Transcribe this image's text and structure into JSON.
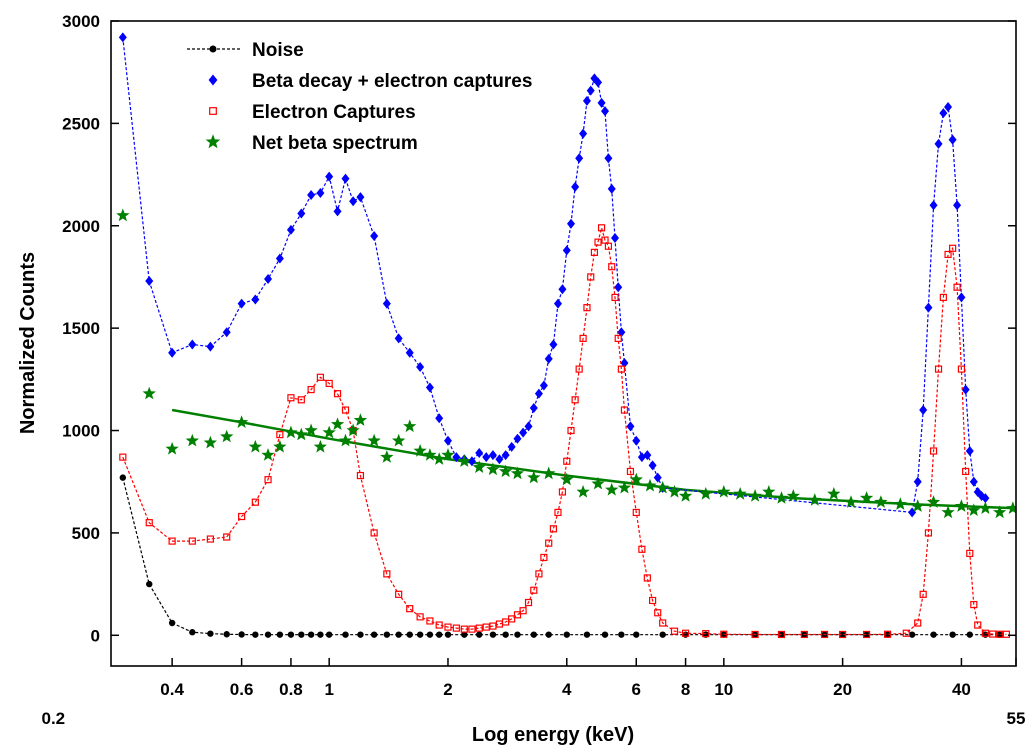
{
  "chart_data": {
    "type": "scatter",
    "xlabel": "Log energy (keV)",
    "ylabel": "Normalized Counts",
    "xscale": "log",
    "xlim": [
      0.28,
      55
    ],
    "ylim": [
      -150,
      3000
    ],
    "grid": false,
    "legend_position": "top-left",
    "x_ticks": [
      {
        "value": 0.2,
        "label": "0.2"
      },
      {
        "value": 0.4,
        "label": "0.4"
      },
      {
        "value": 0.6,
        "label": "0.6"
      },
      {
        "value": 0.8,
        "label": "0.8"
      },
      {
        "value": 1,
        "label": "1"
      },
      {
        "value": 2,
        "label": "2"
      },
      {
        "value": 4,
        "label": "4"
      },
      {
        "value": 6,
        "label": "6"
      },
      {
        "value": 8,
        "label": "8"
      },
      {
        "value": 10,
        "label": "10"
      },
      {
        "value": 20,
        "label": "20"
      },
      {
        "value": 40,
        "label": "40"
      },
      {
        "value": 55,
        "label": "55"
      }
    ],
    "y_ticks": [
      {
        "value": 0,
        "label": "0"
      },
      {
        "value": 500,
        "label": "500"
      },
      {
        "value": 1000,
        "label": "1000"
      },
      {
        "value": 1500,
        "label": "1500"
      },
      {
        "value": 2000,
        "label": "2000"
      },
      {
        "value": 2500,
        "label": "2500"
      },
      {
        "value": 3000,
        "label": "3000"
      }
    ],
    "series": [
      {
        "name": "Noise",
        "color": "#000000",
        "marker": "circle",
        "line": "dashed",
        "x": [
          0.3,
          0.35,
          0.4,
          0.45,
          0.5,
          0.55,
          0.6,
          0.65,
          0.7,
          0.75,
          0.8,
          0.85,
          0.9,
          0.95,
          1,
          1.1,
          1.2,
          1.3,
          1.4,
          1.5,
          1.6,
          1.7,
          1.8,
          1.9,
          2,
          2.2,
          2.4,
          2.6,
          2.8,
          3,
          3.3,
          3.6,
          4,
          4.5,
          5,
          5.5,
          6,
          7,
          8,
          9,
          10,
          12,
          14,
          16,
          18,
          20,
          23,
          26,
          30,
          34,
          38,
          42,
          46,
          50
        ],
        "y": [
          770,
          250,
          60,
          15,
          8,
          5,
          4,
          3,
          3,
          3,
          3,
          3,
          3,
          3,
          3,
          3,
          3,
          3,
          3,
          3,
          3,
          3,
          3,
          3,
          3,
          3,
          3,
          3,
          3,
          3,
          3,
          3,
          3,
          3,
          3,
          3,
          3,
          3,
          3,
          3,
          3,
          3,
          3,
          3,
          3,
          3,
          3,
          3,
          3,
          3,
          3,
          3,
          3,
          3
        ]
      },
      {
        "name": "Beta decay + electron captures",
        "color": "#0000ff",
        "marker": "diamond",
        "line": "dashed",
        "x": [
          0.3,
          0.35,
          0.4,
          0.45,
          0.5,
          0.55,
          0.6,
          0.65,
          0.7,
          0.75,
          0.8,
          0.85,
          0.9,
          0.95,
          1,
          1.05,
          1.1,
          1.15,
          1.2,
          1.3,
          1.4,
          1.5,
          1.6,
          1.7,
          1.8,
          1.9,
          2,
          2.1,
          2.2,
          2.3,
          2.4,
          2.5,
          2.6,
          2.7,
          2.8,
          2.9,
          3,
          3.1,
          3.2,
          3.3,
          3.4,
          3.5,
          3.6,
          3.7,
          3.8,
          3.9,
          4,
          4.1,
          4.2,
          4.3,
          4.4,
          4.5,
          4.6,
          4.7,
          4.8,
          4.9,
          5,
          5.1,
          5.2,
          5.3,
          5.4,
          5.5,
          5.6,
          5.8,
          6,
          6.2,
          6.4,
          6.6,
          6.8,
          7,
          30,
          31,
          32,
          33,
          34,
          35,
          36,
          37,
          38,
          39,
          40,
          41,
          42,
          43,
          44,
          45,
          46
        ],
        "y": [
          2920,
          1730,
          1380,
          1420,
          1410,
          1480,
          1620,
          1640,
          1740,
          1840,
          1980,
          2060,
          2150,
          2160,
          2240,
          2070,
          2230,
          2120,
          2140,
          1950,
          1620,
          1450,
          1380,
          1310,
          1210,
          1060,
          950,
          870,
          860,
          850,
          890,
          870,
          880,
          860,
          880,
          920,
          960,
          990,
          1020,
          1110,
          1180,
          1220,
          1350,
          1420,
          1620,
          1690,
          1880,
          2010,
          2190,
          2330,
          2450,
          2610,
          2660,
          2720,
          2700,
          2600,
          2560,
          2330,
          2180,
          1940,
          1700,
          1480,
          1330,
          1020,
          950,
          870,
          880,
          830,
          770,
          720,
          600,
          750,
          1100,
          1600,
          2100,
          2400,
          2550,
          2580,
          2420,
          2100,
          1650,
          1200,
          900,
          750,
          700,
          680,
          670
        ]
      },
      {
        "name": "Electron Captures",
        "color": "#ff0000",
        "marker": "square-open",
        "line": "dashed",
        "x": [
          0.3,
          0.35,
          0.4,
          0.45,
          0.5,
          0.55,
          0.6,
          0.65,
          0.7,
          0.75,
          0.8,
          0.85,
          0.9,
          0.95,
          1,
          1.05,
          1.1,
          1.15,
          1.2,
          1.3,
          1.4,
          1.5,
          1.6,
          1.7,
          1.8,
          1.9,
          2,
          2.1,
          2.2,
          2.3,
          2.4,
          2.5,
          2.6,
          2.7,
          2.8,
          2.9,
          3,
          3.1,
          3.2,
          3.3,
          3.4,
          3.5,
          3.6,
          3.7,
          3.8,
          3.9,
          4,
          4.1,
          4.2,
          4.3,
          4.4,
          4.5,
          4.6,
          4.7,
          4.8,
          4.9,
          5,
          5.1,
          5.2,
          5.3,
          5.4,
          5.5,
          5.6,
          5.8,
          6,
          6.2,
          6.4,
          6.6,
          6.8,
          7,
          7.5,
          8,
          9,
          10,
          12,
          14,
          16,
          18,
          20,
          23,
          26,
          29,
          31,
          32,
          33,
          34,
          35,
          36,
          37,
          38,
          39,
          40,
          41,
          42,
          43,
          44,
          46,
          48,
          50,
          52
        ],
        "y": [
          870,
          550,
          460,
          460,
          470,
          480,
          580,
          650,
          760,
          980,
          1160,
          1150,
          1200,
          1260,
          1230,
          1180,
          1100,
          1000,
          780,
          500,
          300,
          200,
          130,
          90,
          70,
          50,
          40,
          35,
          30,
          30,
          35,
          40,
          45,
          55,
          65,
          80,
          100,
          120,
          160,
          220,
          300,
          380,
          450,
          520,
          600,
          700,
          850,
          1000,
          1150,
          1300,
          1450,
          1600,
          1750,
          1870,
          1920,
          1990,
          1930,
          1900,
          1800,
          1650,
          1450,
          1300,
          1100,
          800,
          600,
          420,
          280,
          170,
          110,
          60,
          20,
          10,
          8,
          5,
          4,
          4,
          4,
          4,
          4,
          4,
          5,
          10,
          60,
          200,
          500,
          900,
          1300,
          1650,
          1860,
          1890,
          1700,
          1300,
          800,
          400,
          150,
          50,
          10,
          6,
          5,
          5
        ]
      },
      {
        "name": "Net beta spectrum",
        "color": "#008000",
        "marker": "star",
        "line": "solid",
        "x": [
          0.3,
          0.35,
          0.4,
          0.45,
          0.5,
          0.55,
          0.6,
          0.65,
          0.7,
          0.75,
          0.8,
          0.85,
          0.9,
          0.95,
          1,
          1.05,
          1.1,
          1.15,
          1.2,
          1.3,
          1.4,
          1.5,
          1.6,
          1.7,
          1.8,
          1.9,
          2,
          2.2,
          2.4,
          2.6,
          2.8,
          3,
          3.3,
          3.6,
          4,
          4.4,
          4.8,
          5.2,
          5.6,
          6,
          6.5,
          7,
          7.5,
          8,
          9,
          10,
          11,
          12,
          13,
          14,
          15,
          17,
          19,
          21,
          23,
          25,
          28,
          31,
          34,
          37,
          40,
          43,
          46,
          50,
          54
        ],
        "y": [
          2050,
          1180,
          910,
          950,
          940,
          970,
          1040,
          920,
          880,
          920,
          990,
          980,
          1000,
          920,
          990,
          1030,
          950,
          1000,
          1050,
          950,
          870,
          950,
          1020,
          900,
          880,
          860,
          880,
          850,
          820,
          810,
          800,
          790,
          770,
          790,
          760,
          700,
          740,
          710,
          720,
          760,
          730,
          720,
          700,
          680,
          690,
          700,
          690,
          680,
          700,
          670,
          680,
          660,
          690,
          650,
          670,
          650,
          640,
          630,
          650,
          600,
          630,
          610,
          620,
          600,
          620
        ]
      }
    ],
    "fit_line": {
      "color": "#008000",
      "x": [
        0.4,
        0.6,
        1,
        2,
        4,
        8,
        15,
        30,
        55
      ],
      "y": [
        1100,
        1040,
        960,
        860,
        780,
        710,
        670,
        640,
        620
      ]
    }
  }
}
